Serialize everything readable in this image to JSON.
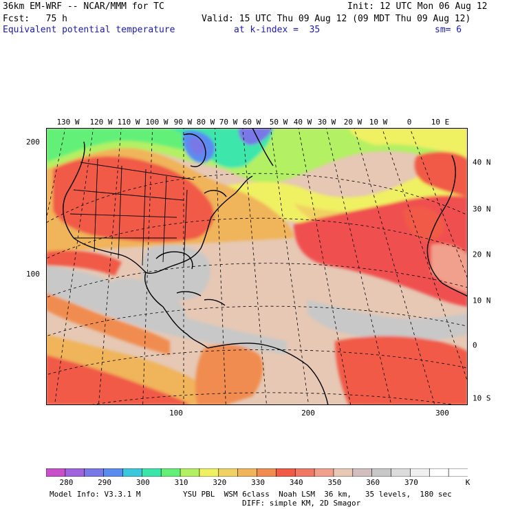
{
  "header": {
    "model": "36km EM-WRF -- NCAR/MMM for TC",
    "init": "Init: 12 UTC Mon 06 Aug 12",
    "fcst": "Fcst:   75 h",
    "valid": "Valid: 15 UTC Thu 09 Aug 12 (09 MDT Thu 09 Aug 12)",
    "field": "Equivalent potential temperature",
    "level": "at k-index =  35",
    "smooth": "sm= 6"
  },
  "map": {
    "lon_labels": [
      "130 W",
      "120 W",
      "110 W",
      "100 W",
      "90 W",
      "80 W",
      "70 W",
      "60 W",
      "50 W",
      "40 W",
      "30 W",
      "20 W",
      "10 W",
      "0",
      "10 E"
    ],
    "lat_labels": [
      "40 N",
      "30 N",
      "20 N",
      "10 N",
      "0",
      "10 S"
    ],
    "grid_x_labels": [
      "100",
      "200",
      "300"
    ],
    "grid_y_labels": [
      "200",
      "100"
    ],
    "colors": {
      "t280": "#c850c8",
      "t285": "#a064dc",
      "t290": "#7878e6",
      "t295": "#5a8cf0",
      "t300": "#3cc8dc",
      "t305": "#3ce6aa",
      "t310": "#64f078",
      "t315": "#b4f064",
      "t320": "#f0f064",
      "t325": "#f0d264",
      "t330": "#f0b45a",
      "t335": "#f08c50",
      "t340": "#f05a46",
      "t345": "#f05050",
      "t350": "#f0a08c",
      "t355": "#e6c8b4",
      "t360": "#c8c8c8",
      "t365": "#dcdcdc",
      "t370": "#f0f0f0"
    }
  },
  "colorbar": {
    "labels": [
      "280",
      "290",
      "300",
      "310",
      "320",
      "330",
      "340",
      "350",
      "360",
      "370",
      "K"
    ],
    "colors": [
      "#c850c8",
      "#a064dc",
      "#7878e6",
      "#5a8cf0",
      "#3cc8dc",
      "#3ce6aa",
      "#64f078",
      "#b4f064",
      "#f0f064",
      "#f0d264",
      "#f0b45a",
      "#f08c50",
      "#f05a46",
      "#f07864",
      "#f0a08c",
      "#e6c8b4",
      "#d2bebe",
      "#c8c8c8",
      "#dcdcdc",
      "#f0f0f0",
      "#ffffff",
      "#ffffff"
    ]
  },
  "footer": {
    "model_info": "Model Info: V3.3.1 M",
    "physics": "YSU PBL  WSM 6class  Noah LSM  36 km,   35 levels,  180 sec",
    "diffusion": "DIFF: simple KM, 2D Smagor"
  }
}
